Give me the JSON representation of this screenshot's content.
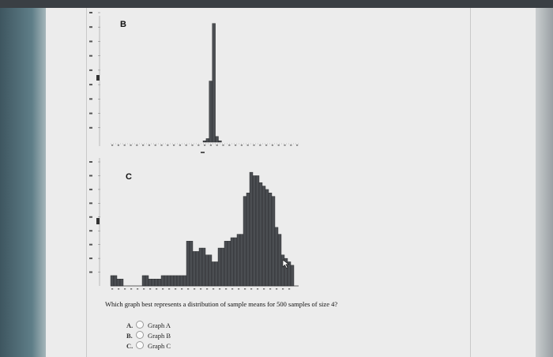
{
  "question": {
    "text": "Which graph best represents a distribution of sample means for 500 samples of size 4?",
    "options": [
      {
        "letter": "A.",
        "label": "Graph A"
      },
      {
        "letter": "B.",
        "label": "Graph B"
      },
      {
        "letter": "C.",
        "label": "Graph C"
      }
    ]
  },
  "chart_data": [
    {
      "type": "bar",
      "panel_label": "B",
      "values": [
        0,
        0,
        0,
        0,
        0,
        0,
        0,
        0,
        0,
        0,
        0,
        0,
        0,
        0,
        0,
        0,
        0,
        0,
        0,
        0,
        0,
        0,
        0,
        0,
        0,
        0,
        0,
        0,
        0,
        0,
        2,
        5,
        85,
        165,
        8,
        2,
        0,
        0,
        0,
        0,
        0,
        0,
        0,
        0,
        0,
        0,
        0,
        0,
        0,
        0,
        0,
        0,
        0,
        0,
        0,
        0,
        0,
        0,
        0,
        0,
        0,
        0
      ],
      "ylim": [
        0,
        180
      ],
      "y_ticks": [
        20,
        40,
        60,
        80,
        100,
        120,
        140,
        160,
        180
      ]
    },
    {
      "type": "bar",
      "panel_label": "C",
      "values": [
        3,
        3,
        2,
        2,
        0,
        0,
        0,
        0,
        0,
        0,
        3,
        3,
        2,
        2,
        2,
        2,
        3,
        3,
        3,
        3,
        3,
        3,
        3,
        3,
        13,
        13,
        10,
        10,
        11,
        11,
        9,
        9,
        7,
        7,
        11,
        11,
        13,
        13,
        14,
        14,
        15,
        15,
        26,
        27,
        33,
        32,
        32,
        30,
        29,
        28,
        27,
        26,
        17,
        15,
        9,
        8,
        7,
        6
      ],
      "ylim": [
        0,
        36
      ],
      "y_ticks": [
        4,
        8,
        12,
        16,
        20,
        24,
        28,
        32,
        36
      ]
    }
  ],
  "colors": {
    "bar": "#4b4e52",
    "bar_edge": "#1e2022",
    "sheet": "#ececec",
    "grid": "#c9c9c9"
  }
}
